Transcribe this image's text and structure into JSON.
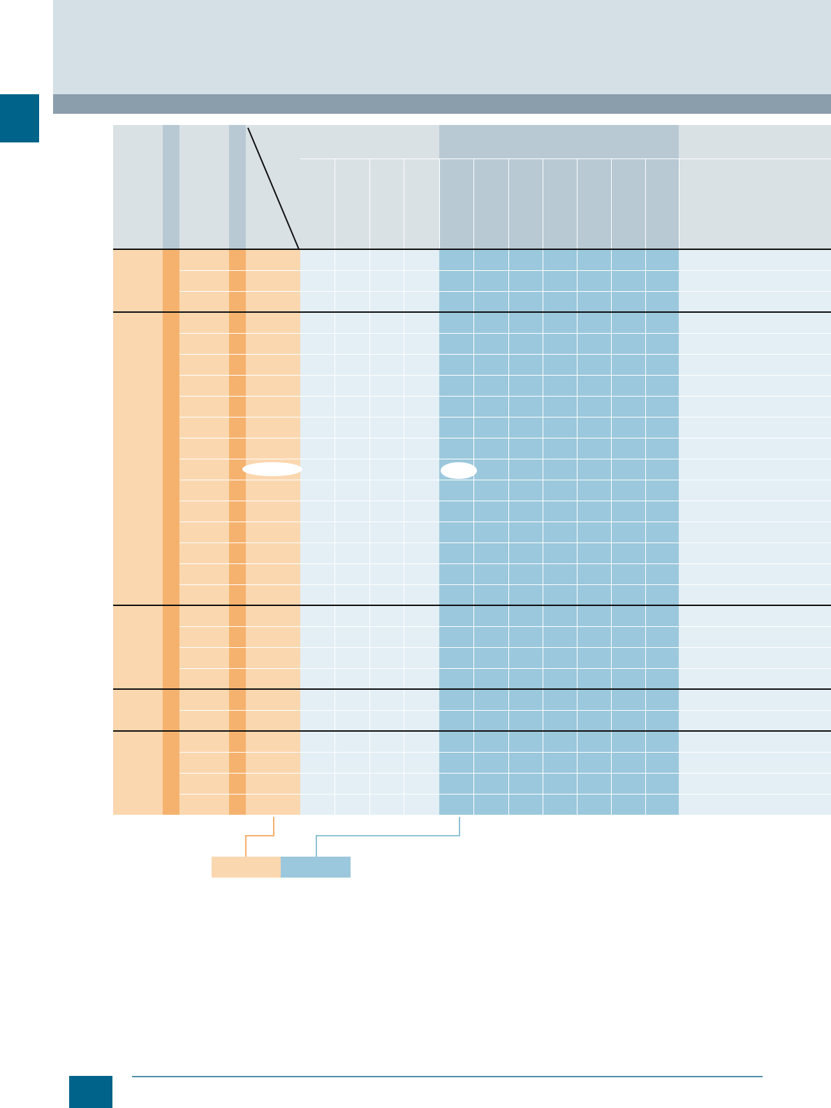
{
  "header": {
    "title": "",
    "subtitle": ""
  },
  "table": {
    "header_groups": [
      "",
      "",
      ""
    ],
    "column_headers": [
      "",
      "",
      "",
      "",
      "",
      "",
      "",
      "",
      "",
      "",
      "",
      ""
    ],
    "row_groups": [
      "",
      "",
      "",
      "",
      ""
    ],
    "rows": []
  },
  "legend": {
    "orange_label": "",
    "blue_label": ""
  },
  "footer": {
    "page_number": ""
  },
  "colors": {
    "header_band": "#d4e0e6",
    "header_bar": "#8a9eac",
    "accent_tab": "#006389",
    "row_label_fill": "#fbd7af",
    "row_label_strip": "#f5b26e",
    "light_cell": "#e3eff5",
    "blue_cell": "#9bc8dc",
    "header_light": "#dae1e5",
    "header_blue": "#b8c9d4"
  }
}
